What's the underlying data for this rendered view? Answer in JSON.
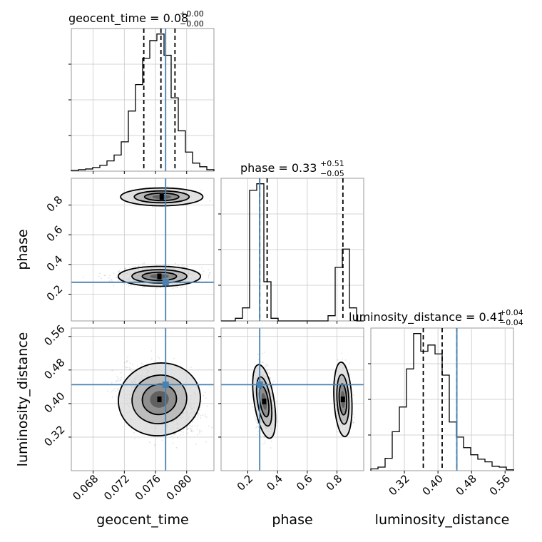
{
  "chart_data": {
    "type": "corner",
    "truth_color": "#4682b4",
    "parameters": [
      {
        "name": "geocent_time",
        "range": [
          0.0652,
          0.0835
        ],
        "ticks": [
          "0.068",
          "0.072",
          "0.076",
          "0.080"
        ],
        "tick_values": [
          0.068,
          0.072,
          0.076,
          0.08
        ],
        "truth": 0.0773,
        "quantiles": [
          0.0745,
          0.0767,
          0.0785
        ]
      },
      {
        "name": "phase",
        "range": [
          0.02,
          0.98
        ],
        "ticks": [
          "0.2",
          "0.4",
          "0.6",
          "0.8"
        ],
        "tick_values": [
          0.2,
          0.4,
          0.6,
          0.8
        ],
        "truth": 0.28,
        "quantiles": [
          0.28,
          0.33,
          0.84
        ]
      },
      {
        "name": "luminosity_distance",
        "range": [
          0.24,
          0.58
        ],
        "ticks": [
          "0.32",
          "0.40",
          "0.48",
          "0.56"
        ],
        "tick_values": [
          0.32,
          0.4,
          0.48,
          0.56
        ],
        "truth": 0.445,
        "quantiles": [
          0.365,
          0.41,
          0.445
        ]
      }
    ],
    "titles": [
      {
        "main": "geocent_time = 0.08",
        "sup": "+0.00",
        "sub": "−0.00"
      },
      {
        "main": "phase = 0.33",
        "sup": "+0.51",
        "sub": "−0.05"
      },
      {
        "main": "luminosity_distance = 0.41",
        "sup": "+0.04",
        "sub": "−0.04"
      }
    ],
    "histograms": [
      {
        "param": "geocent_time",
        "bin_start": 0.0652,
        "bin_width": 0.000915,
        "counts": [
          1,
          2,
          3,
          5,
          8,
          14,
          22,
          40,
          82,
          118,
          154,
          178,
          187,
          158,
          100,
          55,
          26,
          11,
          6,
          2
        ]
      },
      {
        "param": "phase",
        "bin_start": 0.02,
        "bin_width": 0.048,
        "counts": [
          0,
          0,
          2,
          10,
          100,
          105,
          30,
          2,
          0,
          0,
          0,
          0,
          0,
          0,
          0,
          4,
          41,
          55,
          10,
          0
        ]
      },
      {
        "param": "luminosity_distance",
        "bin_start": 0.24,
        "bin_width": 0.017,
        "counts": [
          2,
          4,
          14,
          44,
          72,
          115,
          155,
          135,
          142,
          132,
          108,
          55,
          38,
          26,
          18,
          13,
          10,
          5,
          4,
          1
        ]
      }
    ]
  }
}
